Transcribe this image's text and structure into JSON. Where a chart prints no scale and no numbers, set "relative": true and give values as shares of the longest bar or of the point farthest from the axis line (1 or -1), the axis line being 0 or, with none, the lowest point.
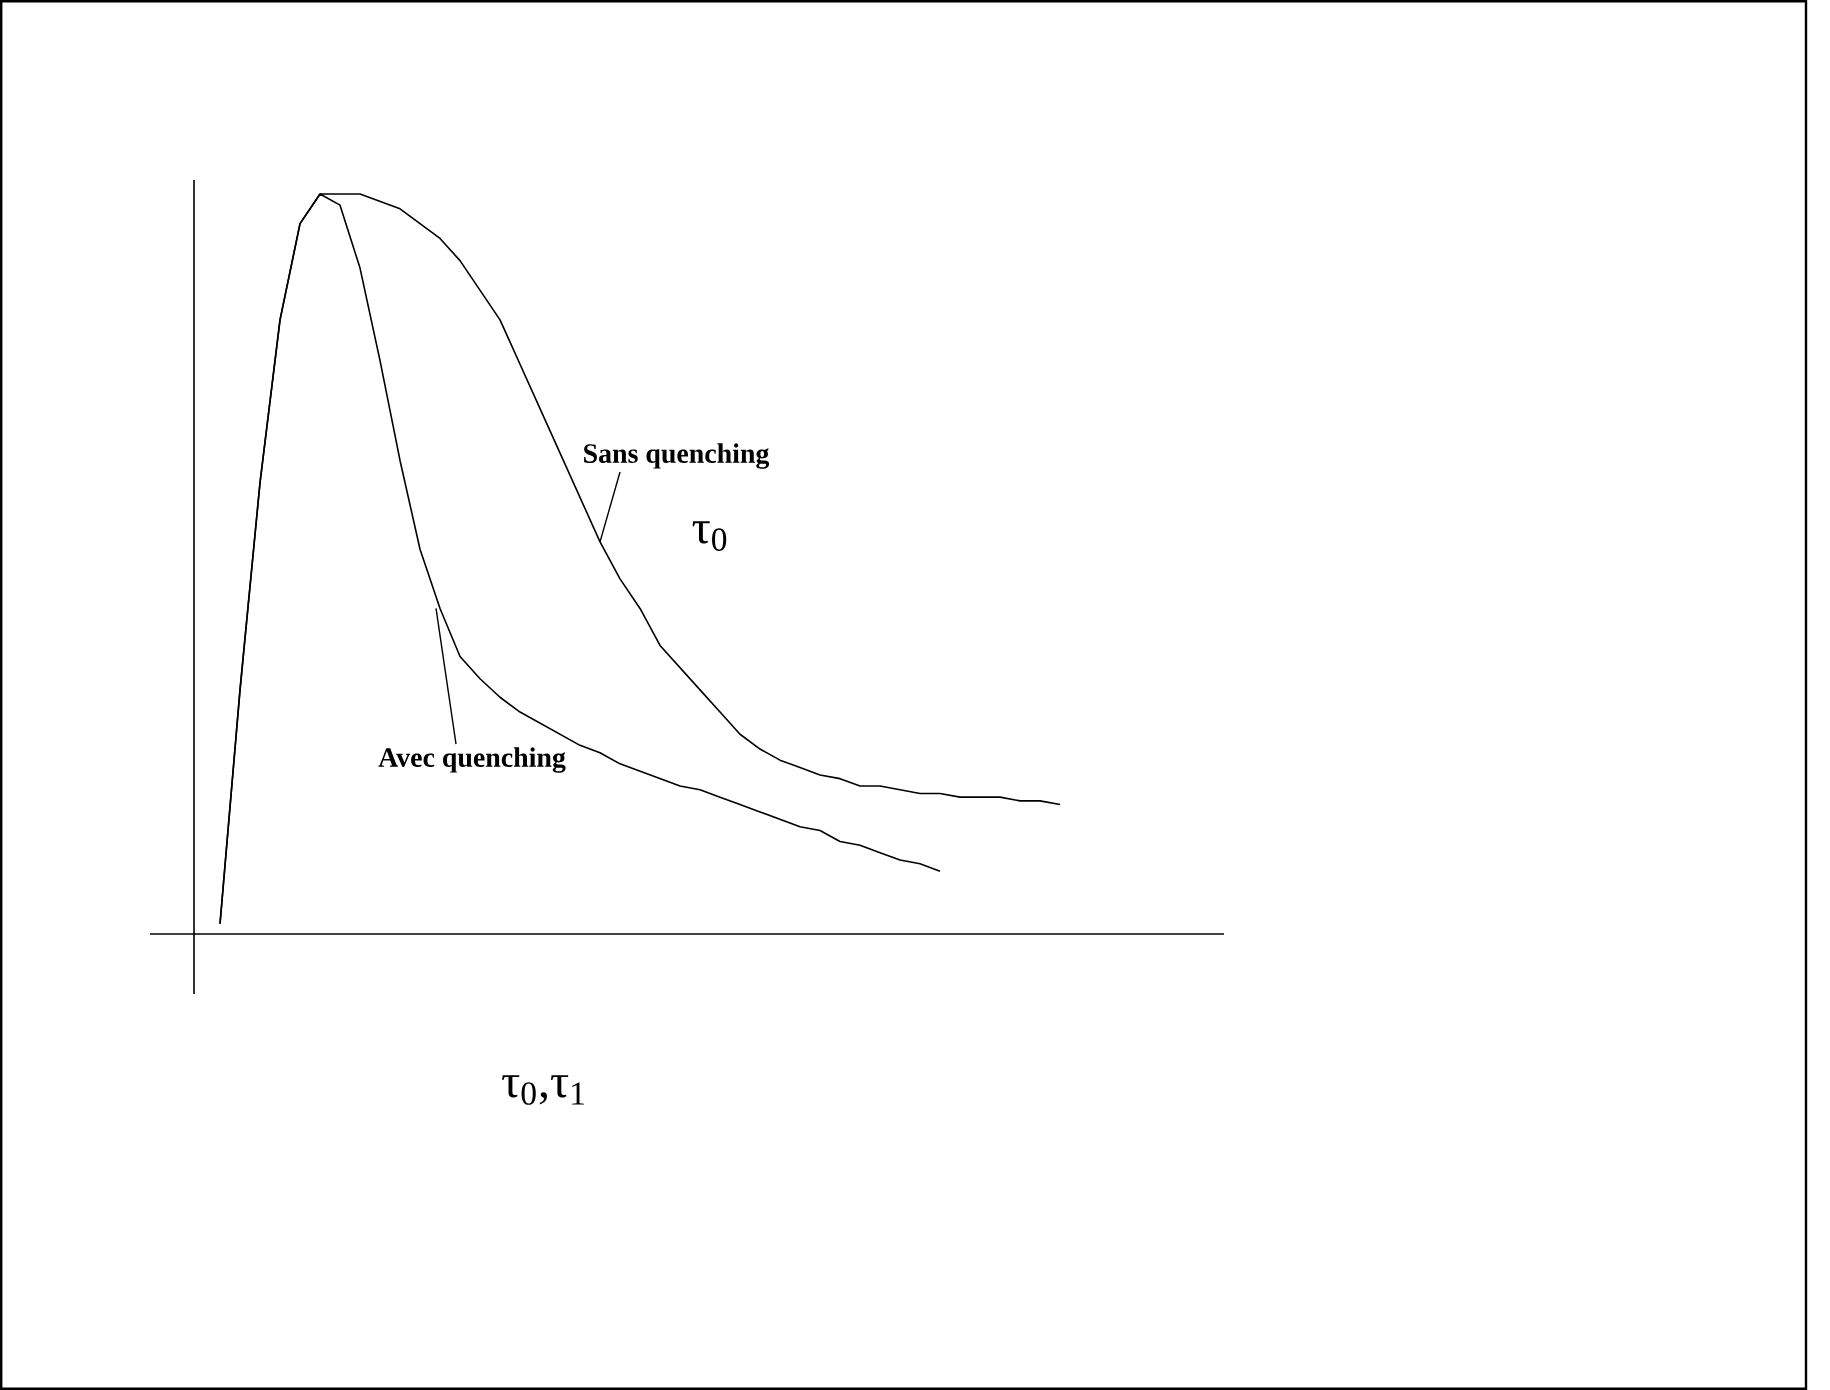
{
  "chart_data": {
    "type": "line",
    "relative": true,
    "xlabel": "τ$_{0}$,τ$_{1}$",
    "annotations": [
      "τ$_{0}$"
    ],
    "marker": "none",
    "line_style": "solid",
    "categories": [
      null,
      null,
      null,
      null,
      null,
      null,
      null,
      null,
      null,
      null,
      null,
      null,
      null,
      null,
      null,
      null,
      null,
      null,
      null,
      null,
      null,
      null,
      null,
      null,
      null,
      null,
      null,
      null,
      null,
      null,
      null,
      null,
      null,
      null,
      null,
      null,
      null,
      null,
      null,
      null,
      null,
      null,
      null
    ],
    "series": [
      {
        "name": "Sans quenching",
        "color": "#000000",
        "values": [
          0.014,
          0.33,
          0.61,
          0.83,
          0.96,
          1.0,
          1.0,
          1.0,
          0.99,
          0.98,
          0.96,
          0.94,
          0.91,
          0.87,
          0.83,
          0.77,
          0.71,
          0.65,
          0.59,
          0.53,
          0.48,
          0.44,
          0.39,
          0.36,
          0.33,
          0.3,
          0.27,
          0.25,
          0.235,
          0.225,
          0.215,
          0.21,
          0.2,
          0.2,
          0.195,
          0.19,
          0.19,
          0.185,
          0.185,
          0.185,
          0.18,
          0.18,
          0.175
        ]
      },
      {
        "name": "Avec quenching",
        "color": "#000000",
        "values": [
          0.014,
          0.33,
          0.61,
          0.83,
          0.96,
          1.0,
          0.985,
          0.9,
          0.775,
          0.64,
          0.52,
          0.44,
          0.375,
          0.345,
          0.32,
          0.3,
          0.285,
          0.27,
          0.255,
          0.245,
          0.23,
          0.22,
          0.21,
          0.2,
          0.195,
          0.185,
          0.175,
          0.165,
          0.155,
          0.145,
          0.14,
          0.125,
          0.12,
          0.11,
          0.1,
          0.095,
          0.085,
          null,
          null,
          null,
          null,
          null,
          null
        ]
      }
    ]
  }
}
